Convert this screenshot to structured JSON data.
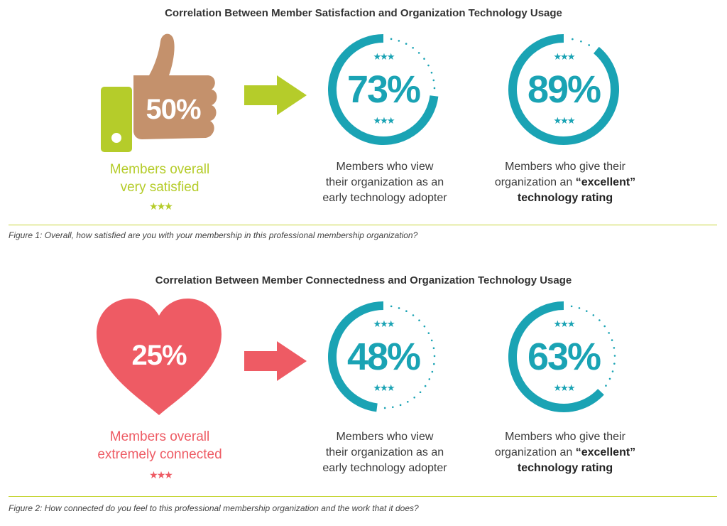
{
  "figure1": {
    "title": "Correlation Between Member Satisfaction and Organization Technology Usage",
    "icon": "thumbs-up-icon",
    "icon_value": "50%",
    "icon_caption_line1": "Members overall",
    "icon_caption_line2": "very satisfied",
    "stars": "★★★",
    "ring1": {
      "value": "73%",
      "caption_line1": "Members who view",
      "caption_line2": "their organization as an",
      "caption_line3": "early technology adopter"
    },
    "ring2": {
      "value": "89%",
      "caption_line1": "Members who give their",
      "caption_line2a": "organization an ",
      "caption_line2b": "“excellent”",
      "caption_line3": "technology rating"
    },
    "caption": "Figure 1: Overall, how satisfied are you with your membership in this professional membership organization?",
    "accent_color": "#b5cc2a",
    "hand_color": "#c4916c"
  },
  "figure2": {
    "title": "Correlation Between Member Connectedness and Organization Technology Usage",
    "icon": "heart-icon",
    "icon_value": "25%",
    "icon_caption_line1": "Members overall",
    "icon_caption_line2": "extremely connected",
    "stars": "★★★",
    "ring1": {
      "value": "48%",
      "caption_line1": "Members who view",
      "caption_line2": "their organization as an",
      "caption_line3": "early technology adopter"
    },
    "ring2": {
      "value": "63%",
      "caption_line1": "Members who give their",
      "caption_line2a": "organization an ",
      "caption_line2b": "“excellent”",
      "caption_line3": "technology rating"
    },
    "caption": "Figure 2: How connected do you feel to this professional membership organization and the work that it does?",
    "accent_color": "#ee5b64"
  },
  "ring_color": "#1aa3b4",
  "ring_progress": {
    "figure1_ring1": 0.73,
    "figure1_ring2": 0.89,
    "figure2_ring1": 0.48,
    "figure2_ring2": 0.63
  }
}
